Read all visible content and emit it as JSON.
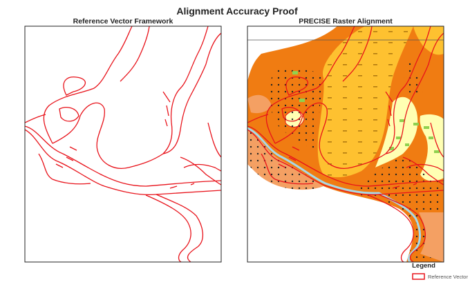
{
  "title": "Alignment Accuracy Proof",
  "panels": [
    {
      "title": "Reference Vector Framework"
    },
    {
      "title": "PRECISE Raster Alignment"
    }
  ],
  "legend": {
    "title": "Legend",
    "items": [
      {
        "label": "Reference Vector"
      }
    ]
  }
}
